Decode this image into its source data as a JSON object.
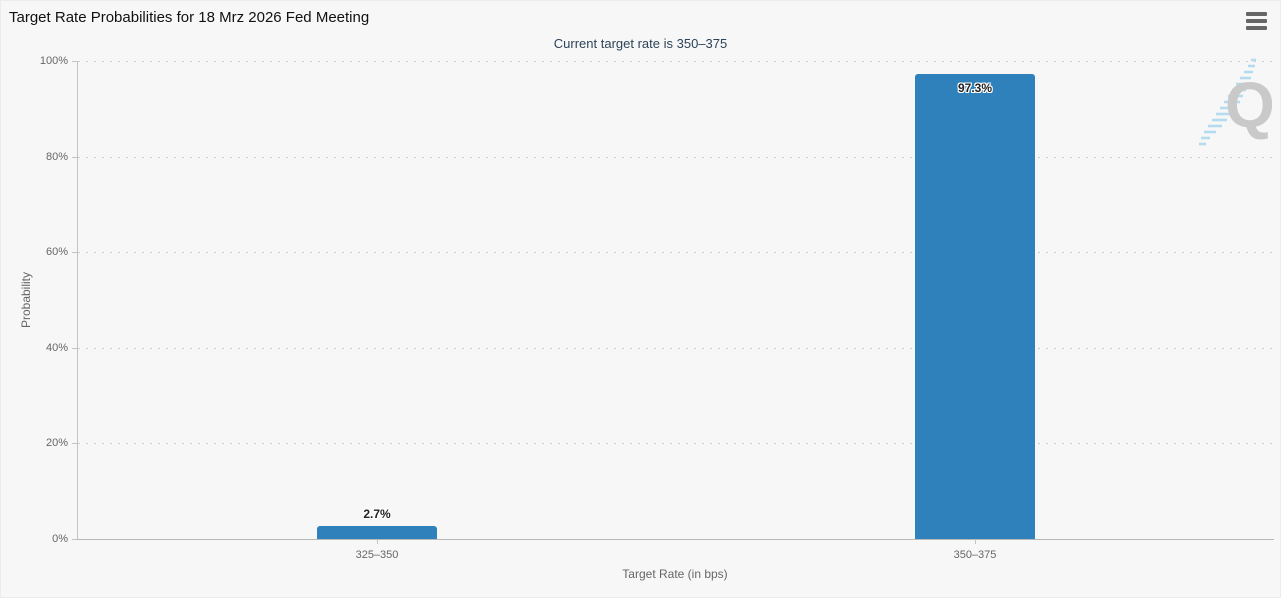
{
  "chart_data": {
    "type": "bar",
    "title": "Target Rate Probabilities for 18 Mrz 2026 Fed Meeting",
    "subtitle": "Current target rate is 350–375",
    "categories": [
      "325–350",
      "350–375"
    ],
    "values": [
      2.7,
      97.3
    ],
    "value_labels": [
      "2.7%",
      "97.3%"
    ],
    "xlabel": "Target Rate (in bps)",
    "ylabel": "Probability",
    "ylim": [
      0,
      100
    ],
    "yticks": [
      0,
      20,
      40,
      60,
      80,
      100
    ],
    "ytick_labels": [
      "0%",
      "20%",
      "40%",
      "60%",
      "80%",
      "100%"
    ],
    "grid": "horizontal-dotted",
    "legend_position": "none",
    "bar_color": "#2e81ba"
  },
  "header": {
    "menu_icon": "hamburger-menu"
  },
  "watermark": {
    "letter": "Q"
  },
  "colors": {
    "background": "#f7f7f7",
    "axis_line": "#c3c3c3",
    "grid_dots": "#cdcdcd",
    "tick_text": "#666666",
    "title_text": "#111111",
    "subtitle_text": "#2d4358",
    "bar": "#2e81ba",
    "data_label": "#222222",
    "watermark_gray": "#c9c9c9",
    "watermark_blue": "#b5dcee"
  }
}
